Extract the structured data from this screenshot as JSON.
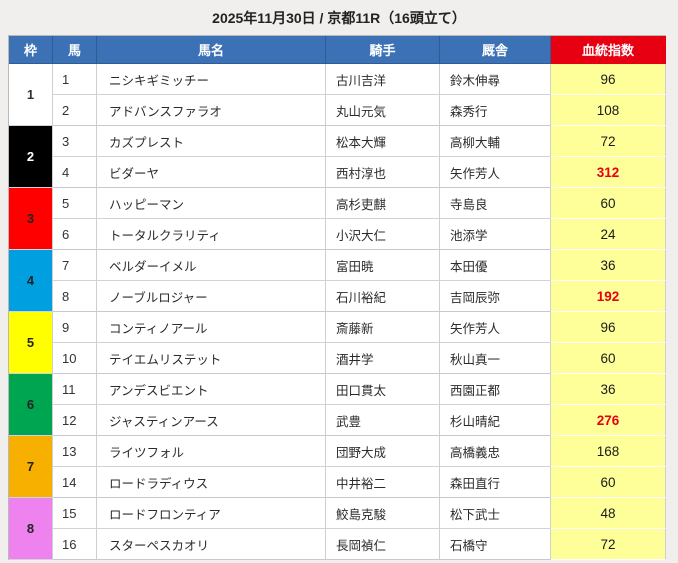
{
  "title": "2025年11月30日 / 京都11R（16頭立て）",
  "colors": {
    "header_bg": "#3c72b5",
    "index_header_bg": "#e60012",
    "index_cell_bg": "#ffff99",
    "value_normal": "#1a1a1a",
    "value_high": "#e60012",
    "page_bg": "#f0efed"
  },
  "columns": {
    "frame": "枠",
    "horse": "馬",
    "name": "馬名",
    "jockey": "騎手",
    "stable": "厩舎",
    "index": "血統指数"
  },
  "frames": [
    {
      "label": "1",
      "bg": "#ffffff",
      "fg": "#333333"
    },
    {
      "label": "2",
      "bg": "#000000",
      "fg": "#ffffff"
    },
    {
      "label": "3",
      "bg": "#ff0000",
      "fg": "#222222"
    },
    {
      "label": "4",
      "bg": "#00a0e0",
      "fg": "#222222"
    },
    {
      "label": "5",
      "bg": "#ffff00",
      "fg": "#222222"
    },
    {
      "label": "6",
      "bg": "#00a551",
      "fg": "#222222"
    },
    {
      "label": "7",
      "bg": "#f7b000",
      "fg": "#222222"
    },
    {
      "label": "8",
      "bg": "#ee82ee",
      "fg": "#222222"
    }
  ],
  "rows": [
    {
      "num": "1",
      "name": "ニシキギミッチー",
      "jockey": "古川吉洋",
      "stable": "鈴木伸尋",
      "index": "96",
      "index_color": "#1a1a1a",
      "index_weight": "normal"
    },
    {
      "num": "2",
      "name": "アドバンスファラオ",
      "jockey": "丸山元気",
      "stable": "森秀行",
      "index": "108",
      "index_color": "#1a1a1a",
      "index_weight": "normal"
    },
    {
      "num": "3",
      "name": "カズプレスト",
      "jockey": "松本大輝",
      "stable": "高柳大輔",
      "index": "72",
      "index_color": "#1a1a1a",
      "index_weight": "normal"
    },
    {
      "num": "4",
      "name": "ビダーヤ",
      "jockey": "西村淳也",
      "stable": "矢作芳人",
      "index": "312",
      "index_color": "#e60012",
      "index_weight": "bold"
    },
    {
      "num": "5",
      "name": "ハッピーマン",
      "jockey": "高杉吏麒",
      "stable": "寺島良",
      "index": "60",
      "index_color": "#1a1a1a",
      "index_weight": "normal"
    },
    {
      "num": "6",
      "name": "トータルクラリティ",
      "jockey": "小沢大仁",
      "stable": "池添学",
      "index": "24",
      "index_color": "#1a1a1a",
      "index_weight": "normal"
    },
    {
      "num": "7",
      "name": "ベルダーイメル",
      "jockey": "富田暁",
      "stable": "本田優",
      "index": "36",
      "index_color": "#1a1a1a",
      "index_weight": "normal"
    },
    {
      "num": "8",
      "name": "ノーブルロジャー",
      "jockey": "石川裕紀",
      "stable": "吉岡辰弥",
      "index": "192",
      "index_color": "#e60012",
      "index_weight": "bold"
    },
    {
      "num": "9",
      "name": "コンティノアール",
      "jockey": "斎藤新",
      "stable": "矢作芳人",
      "index": "96",
      "index_color": "#1a1a1a",
      "index_weight": "normal"
    },
    {
      "num": "10",
      "name": "テイエムリステット",
      "jockey": "酒井学",
      "stable": "秋山真一",
      "index": "60",
      "index_color": "#1a1a1a",
      "index_weight": "normal"
    },
    {
      "num": "11",
      "name": "アンデスビエント",
      "jockey": "田口貫太",
      "stable": "西園正都",
      "index": "36",
      "index_color": "#1a1a1a",
      "index_weight": "normal"
    },
    {
      "num": "12",
      "name": "ジャスティンアース",
      "jockey": "武豊",
      "stable": "杉山晴紀",
      "index": "276",
      "index_color": "#e60012",
      "index_weight": "bold"
    },
    {
      "num": "13",
      "name": "ライツフォル",
      "jockey": "団野大成",
      "stable": "高橋義忠",
      "index": "168",
      "index_color": "#1a1a1a",
      "index_weight": "normal"
    },
    {
      "num": "14",
      "name": "ロードラディウス",
      "jockey": "中井裕二",
      "stable": "森田直行",
      "index": "60",
      "index_color": "#1a1a1a",
      "index_weight": "normal"
    },
    {
      "num": "15",
      "name": "ロードフロンティア",
      "jockey": "鮫島克駿",
      "stable": "松下武士",
      "index": "48",
      "index_color": "#1a1a1a",
      "index_weight": "normal"
    },
    {
      "num": "16",
      "name": "スターペスカオリ",
      "jockey": "長岡禎仁",
      "stable": "石橋守",
      "index": "72",
      "index_color": "#1a1a1a",
      "index_weight": "normal"
    }
  ]
}
